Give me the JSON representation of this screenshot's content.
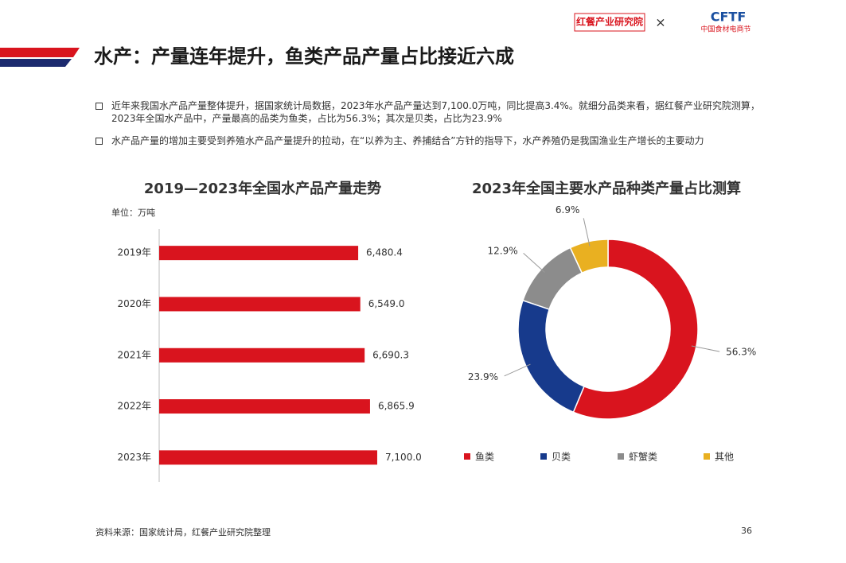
{
  "header": {
    "title": "水产：产量连年提升，鱼类产品产量占比接近六成",
    "logo_left": "红餐产业研究院",
    "logo_sep": "×",
    "logo_right": "CFTF",
    "logo_right_sub": "中国食材电商节"
  },
  "bullets": [
    "近年来我国水产品产量整体提升，据国家统计局数据，2023年水产品产量达到7,100.0万吨，同比提高3.4%。就细分品类来看，据红餐产业研究院测算，2023年全国水产品中，产量最高的品类为鱼类，占比为56.3%；其次是贝类，占比为23.9%",
    "水产品产量的增加主要受到养殖水产品产量提升的拉动，在“以养为主、养捕结合”方针的指导下，水产养殖仍是我国渔业生产增长的主要动力"
  ],
  "chart_data": [
    {
      "type": "hbar",
      "title": "2019—2023年全国水产品产量走势",
      "unit": "单位：万吨",
      "categories": [
        "2019年",
        "2020年",
        "2021年",
        "2022年",
        "2023年"
      ],
      "values": [
        6480.4,
        6549.0,
        6690.3,
        6865.9,
        7100.0
      ],
      "value_labels": [
        "6,480.4",
        "6,549.0",
        "6,690.3",
        "6,865.9",
        "7,100.0"
      ],
      "color": "#d9141e",
      "xlim": [
        0,
        8000
      ]
    },
    {
      "type": "donut",
      "title": "2023年全国主要水产品种类产量占比测算",
      "series": [
        {
          "name": "鱼类",
          "color": "#d9141e",
          "values": [
            56.3
          ],
          "value_labels": [
            "56.3%"
          ]
        },
        {
          "name": "贝类",
          "color": "#173a8c",
          "values": [
            23.9
          ],
          "value_labels": [
            "23.9%"
          ]
        },
        {
          "name": "虾蟹类",
          "color": "#8c8c8c",
          "values": [
            12.9
          ],
          "value_labels": [
            "12.9%"
          ]
        },
        {
          "name": "其他",
          "color": "#e9b021",
          "values": [
            6.9
          ],
          "value_labels": [
            "6.9%"
          ]
        }
      ]
    }
  ],
  "source": "资料来源：国家统计局，红餐产业研究院整理",
  "page_number": "36"
}
